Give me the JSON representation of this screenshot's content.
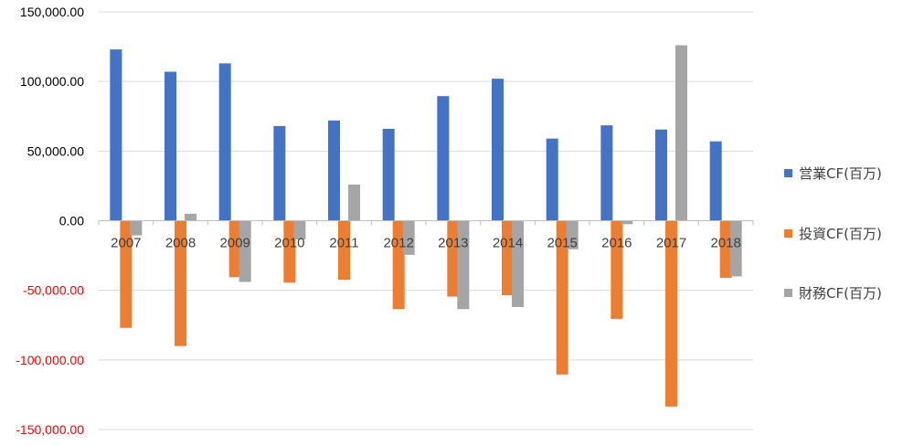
{
  "chart_data": {
    "type": "bar",
    "categories": [
      "2007",
      "2008",
      "2009",
      "2010",
      "2011",
      "2012",
      "2013",
      "2014",
      "2015",
      "2016",
      "2017",
      "2018"
    ],
    "series": [
      {
        "name": "営業CF(百万)",
        "color": "#4472C4",
        "values": [
          123000,
          107000,
          113000,
          68000,
          72000,
          66000,
          89500,
          102000,
          59000,
          68500,
          65500,
          57000
        ]
      },
      {
        "name": "投資CF(百万)",
        "color": "#ED7D31",
        "values": [
          -77000,
          -90000,
          -40500,
          -44500,
          -42500,
          -63500,
          -54500,
          -53500,
          -110500,
          -70500,
          -133500,
          -41000
        ]
      },
      {
        "name": "財務CF(百万)",
        "color": "#A5A5A5",
        "values": [
          -10500,
          5000,
          -44000,
          -13500,
          26000,
          -24500,
          -63500,
          -62000,
          -20500,
          -2500,
          126000,
          -40000
        ]
      }
    ],
    "ylim": [
      -150000,
      150000
    ],
    "yticks": [
      150000,
      100000,
      50000,
      0,
      -50000,
      -100000,
      -150000
    ],
    "ytick_labels": [
      "150,000.00",
      "100,000.00",
      "50,000.00",
      "0.00",
      "-50,000.00",
      "-100,000.00",
      "-150,000.00"
    ],
    "negative_tick_color": "#FF0000",
    "positive_tick_color": "#000000",
    "grid": true,
    "grid_color": "#D9D9D9",
    "legend": "right",
    "title": "",
    "xlabel": "",
    "ylabel": ""
  }
}
